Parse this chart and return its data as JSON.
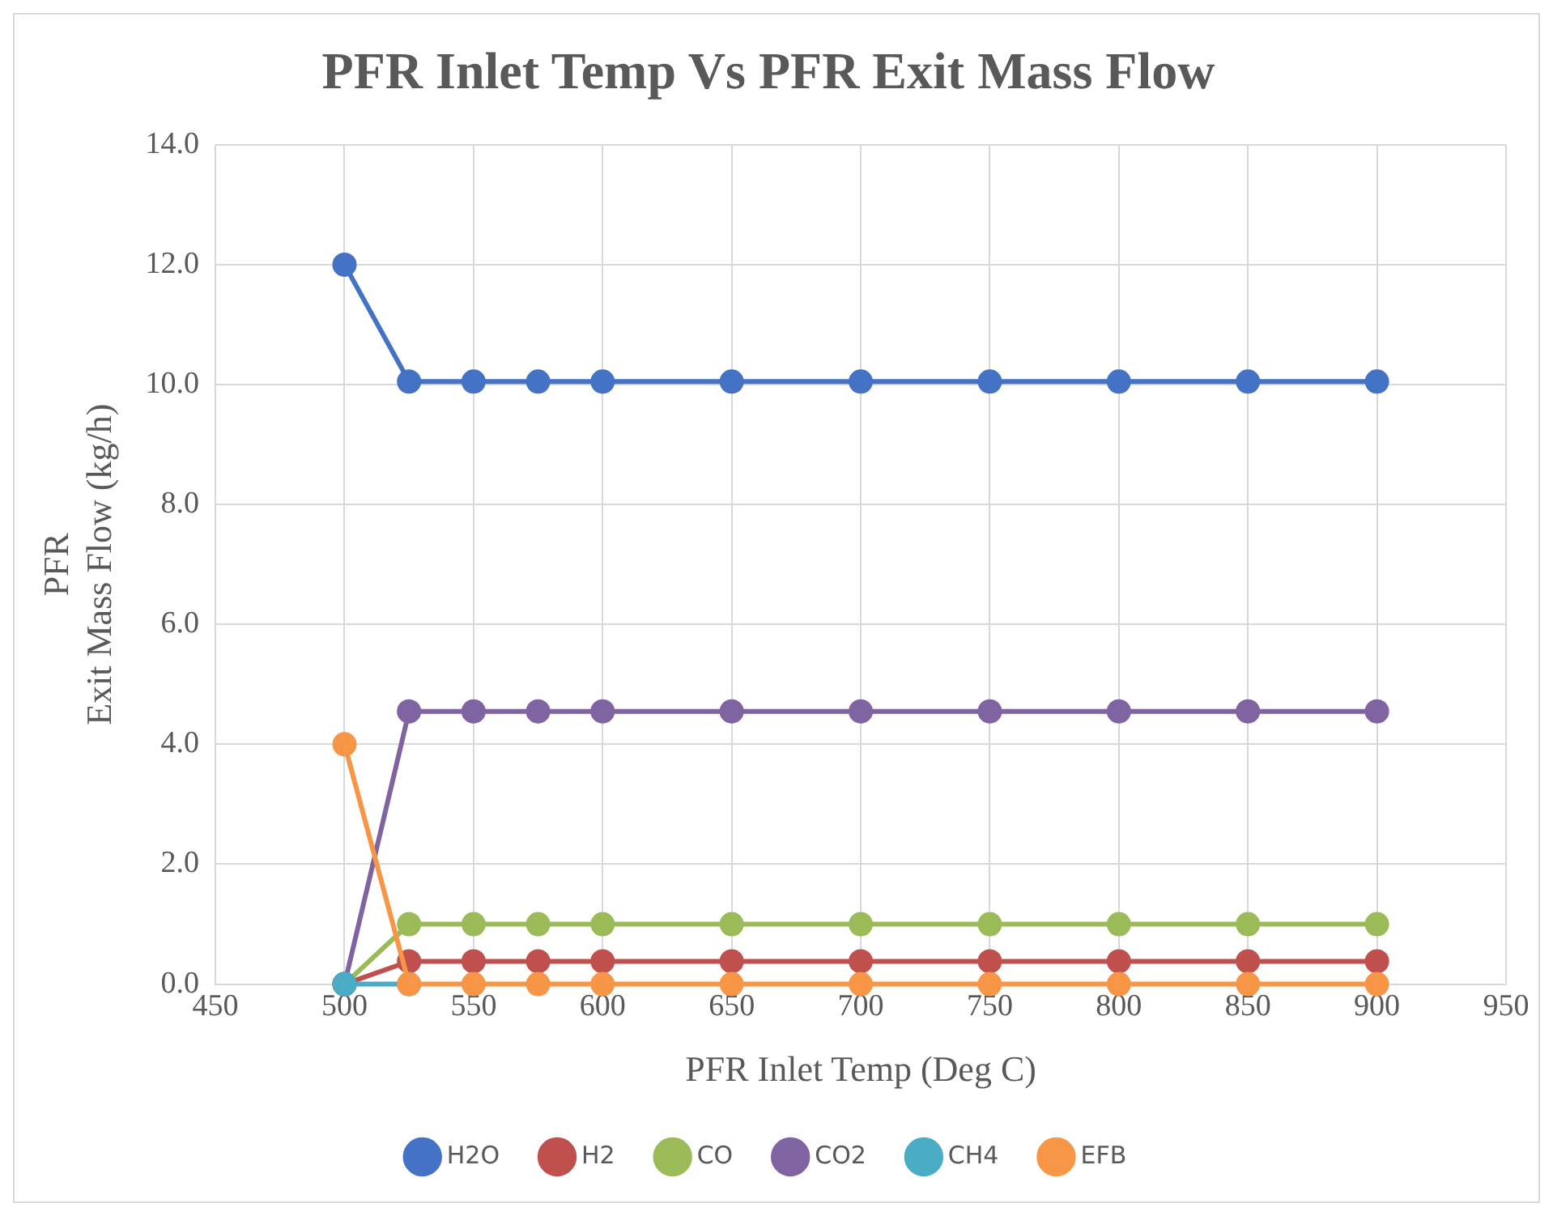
{
  "chart_data": {
    "type": "line",
    "title": "PFR Inlet Temp Vs PFR Exit Mass Flow",
    "xlabel": "PFR Inlet Temp (Deg C)",
    "ylabel": "PFR\nExit Mass Flow (kg/h)",
    "x": [
      500,
      525,
      550,
      575,
      600,
      650,
      700,
      750,
      800,
      850,
      900
    ],
    "series": [
      {
        "name": "H2O",
        "color": "#4472c4",
        "values": [
          12.0,
          10.05,
          10.05,
          10.05,
          10.05,
          10.05,
          10.05,
          10.05,
          10.05,
          10.05,
          10.05
        ]
      },
      {
        "name": "H2",
        "color": "#c0504d",
        "values": [
          0,
          0.38,
          0.38,
          0.38,
          0.38,
          0.38,
          0.38,
          0.38,
          0.38,
          0.38,
          0.38
        ]
      },
      {
        "name": "CO",
        "color": "#9bbb59",
        "values": [
          0,
          1.0,
          1.0,
          1.0,
          1.0,
          1.0,
          1.0,
          1.0,
          1.0,
          1.0,
          1.0
        ]
      },
      {
        "name": "CO2",
        "color": "#8064a2",
        "values": [
          0,
          4.55,
          4.55,
          4.55,
          4.55,
          4.55,
          4.55,
          4.55,
          4.55,
          4.55,
          4.55
        ]
      },
      {
        "name": "CH4",
        "color": "#4bacc6",
        "values": [
          0,
          0,
          null,
          null,
          null,
          null,
          null,
          null,
          null,
          null,
          null
        ]
      },
      {
        "name": "EFB",
        "color": "#f79646",
        "values": [
          4.0,
          0,
          0,
          0,
          0,
          0,
          0,
          0,
          0,
          0,
          0
        ]
      }
    ],
    "xlim": [
      450,
      950
    ],
    "xticks": [
      450,
      500,
      550,
      600,
      650,
      700,
      750,
      800,
      850,
      900,
      950
    ],
    "ylim": [
      0,
      14
    ],
    "yticks": [
      {
        "value": 0,
        "label": "0.0"
      },
      {
        "value": 2,
        "label": "2.0"
      },
      {
        "value": 4,
        "label": "4.0"
      },
      {
        "value": 6,
        "label": "6.0"
      },
      {
        "value": 8,
        "label": "8.0"
      },
      {
        "value": 10,
        "label": "10.0"
      },
      {
        "value": 12,
        "label": "12.0"
      },
      {
        "value": 14,
        "label": "14.0"
      }
    ],
    "grid": true,
    "legend": "bottom",
    "marker": "circle",
    "line_style": "solid"
  }
}
